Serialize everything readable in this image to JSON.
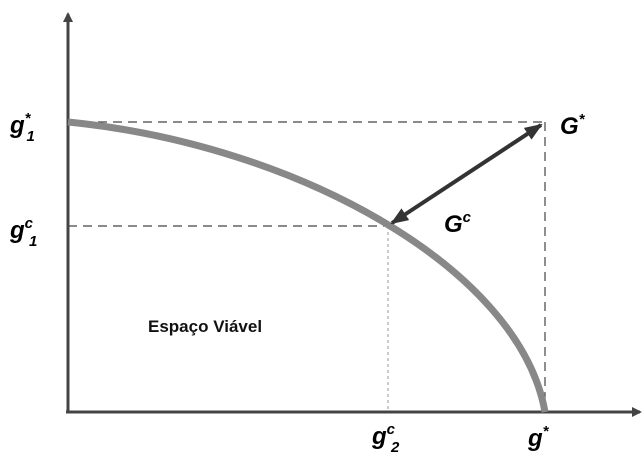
{
  "labels": {
    "g1_star": {
      "base": "g",
      "sup": "*",
      "sub": "1"
    },
    "g1_c": {
      "base": "g",
      "sup": "c",
      "sub": "1"
    },
    "G_star": {
      "base": "G",
      "sup": "*"
    },
    "G_c": {
      "base": "G",
      "sup": "c"
    },
    "g2_c": {
      "base": "g",
      "sup": "c",
      "sub": "2"
    },
    "g_star": {
      "base": "g",
      "sup": "*"
    }
  },
  "region_label": "Espaço Viável"
}
